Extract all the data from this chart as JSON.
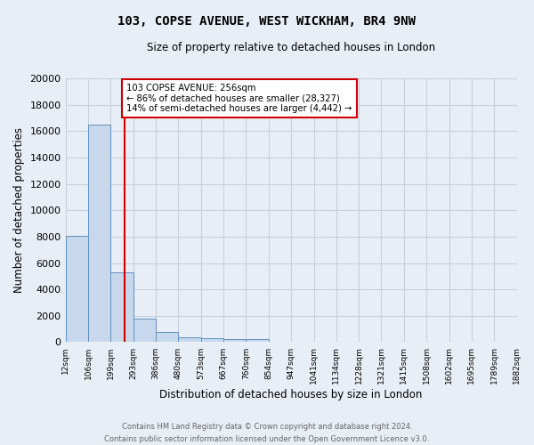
{
  "title": "103, COPSE AVENUE, WEST WICKHAM, BR4 9NW",
  "subtitle": "Size of property relative to detached houses in London",
  "xlabel": "Distribution of detached houses by size in London",
  "ylabel": "Number of detached properties",
  "footer_line1": "Contains HM Land Registry data © Crown copyright and database right 2024.",
  "footer_line2": "Contains public sector information licensed under the Open Government Licence v3.0.",
  "bar_color": "#c8d8ec",
  "bar_edge_color": "#6090c0",
  "background_color": "#e8eef5",
  "grid_color": "#c8d0dc",
  "property_line_color": "#cc0000",
  "annotation_box_color": "#cc0000",
  "bin_labels": [
    "12sqm",
    "106sqm",
    "199sqm",
    "293sqm",
    "386sqm",
    "480sqm",
    "573sqm",
    "667sqm",
    "760sqm",
    "854sqm",
    "947sqm",
    "1041sqm",
    "1134sqm",
    "1228sqm",
    "1321sqm",
    "1415sqm",
    "1508sqm",
    "1602sqm",
    "1695sqm",
    "1789sqm",
    "1882sqm"
  ],
  "bin_edges": [
    12,
    106,
    199,
    293,
    386,
    480,
    573,
    667,
    760,
    854,
    947,
    1041,
    1134,
    1228,
    1321,
    1415,
    1508,
    1602,
    1695,
    1789,
    1882
  ],
  "bar_heights": [
    8050,
    16500,
    5300,
    1800,
    800,
    350,
    280,
    220,
    200,
    50,
    30,
    20,
    15,
    10,
    8,
    6,
    5,
    4,
    3,
    2
  ],
  "property_size": 256,
  "ylim": [
    0,
    20000
  ],
  "yticks": [
    0,
    2000,
    4000,
    6000,
    8000,
    10000,
    12000,
    14000,
    16000,
    18000,
    20000
  ],
  "annotation_title": "103 COPSE AVENUE: 256sqm",
  "annotation_line1": "← 86% of detached houses are smaller (28,327)",
  "annotation_line2": "14% of semi-detached houses are larger (4,442) →"
}
